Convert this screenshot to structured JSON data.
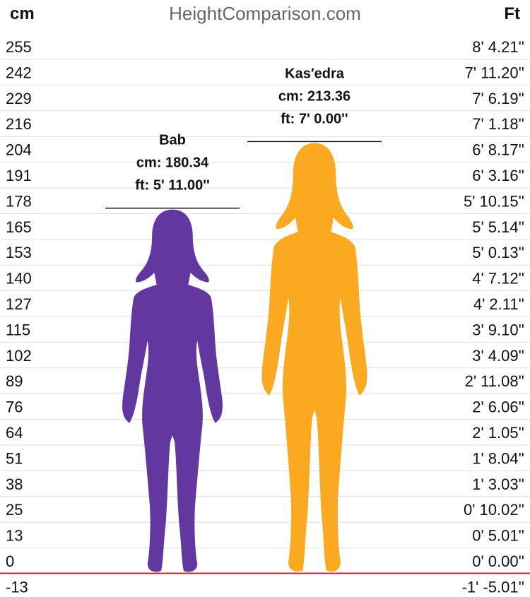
{
  "header": {
    "left_unit": "cm",
    "site": "HeightComparison.com",
    "right_unit": "Ft"
  },
  "chart_data": {
    "type": "bar",
    "categories": [
      "Bab",
      "Kas′edra"
    ],
    "values": [
      180.34,
      213.36
    ],
    "ylim": [
      -13,
      255
    ],
    "y_ticks_cm": [
      "255",
      "242",
      "229",
      "216",
      "204",
      "191",
      "178",
      "165",
      "153",
      "140",
      "127",
      "115",
      "102",
      "89",
      "76",
      "64",
      "51",
      "38",
      "25",
      "13",
      "0",
      "-13"
    ],
    "y_ticks_ft": [
      "8' 4.21''",
      "7' 11.20''",
      "7' 6.19''",
      "7' 1.18''",
      "6' 8.17''",
      "6' 3.16''",
      "5' 10.15''",
      "5' 5.14''",
      "5' 0.13''",
      "4' 7.12''",
      "4' 2.11''",
      "3' 9.10''",
      "3' 4.09''",
      "2' 11.08''",
      "2' 6.06''",
      "2' 1.05''",
      "1' 8.04''",
      "1' 3.03''",
      "0' 10.02''",
      "0' 5.01''",
      "0' 0.00''",
      "-1' -5.01''"
    ],
    "grid": true,
    "series": [
      {
        "name": "Bab",
        "color": "#6237A0",
        "height_cm": 180.34,
        "label_cm": "cm: 180.34",
        "label_ft": "ft: 5' 11.00''"
      },
      {
        "name": "Kas′edra",
        "color": "#FBA921",
        "height_cm": 213.36,
        "label_cm": "cm: 213.36",
        "label_ft": "ft: 7' 0.00''"
      }
    ],
    "baseline_color": "#C0272D"
  }
}
